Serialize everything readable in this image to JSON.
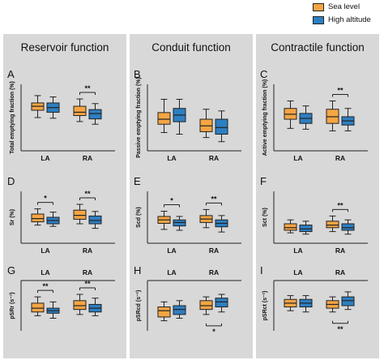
{
  "colors": {
    "sea": "#f5a544",
    "high": "#2d7fc1",
    "panel_bg": "#d8d8d8",
    "stroke": "#222222"
  },
  "legend": [
    {
      "label": "Sea level",
      "color": "#f5a544"
    },
    {
      "label": "High altitude",
      "color": "#2d7fc1"
    }
  ],
  "columns": [
    "Reservoir function",
    "Conduit function",
    "Contractile function"
  ],
  "chart_data": [
    {
      "type": "box",
      "panel": "A",
      "ylabel": "Total emptying fraction (%)",
      "ylim": [
        0,
        100
      ],
      "xlabel_position": "bottom",
      "categories": [
        "LA",
        "RA"
      ],
      "series": [
        {
          "name": "Sea level",
          "boxes": [
            {
              "min": 50,
              "q1": 61,
              "median": 67,
              "q3": 72,
              "max": 83
            },
            {
              "min": 44,
              "q1": 53,
              "median": 58,
              "q3": 67,
              "max": 78
            }
          ]
        },
        {
          "name": "High altitude",
          "boxes": [
            {
              "min": 49,
              "q1": 58,
              "median": 65,
              "q3": 72,
              "max": 81
            },
            {
              "min": 40,
              "q1": 48,
              "median": 56,
              "q3": 62,
              "max": 71
            }
          ]
        }
      ],
      "significance": [
        {
          "category": "RA",
          "label": "**",
          "position": "above"
        }
      ]
    },
    {
      "type": "box",
      "panel": "B",
      "ylabel": "Passive emptying fraction (%)",
      "ylim": [
        0,
        80
      ],
      "xlabel_position": "bottom",
      "categories": [
        "LA",
        "RA"
      ],
      "series": [
        {
          "name": "Sea level",
          "boxes": [
            {
              "min": 22,
              "q1": 32,
              "median": 38,
              "q3": 46,
              "max": 62
            },
            {
              "min": 16,
              "q1": 23,
              "median": 30,
              "q3": 38,
              "max": 50
            }
          ]
        },
        {
          "name": "High altitude",
          "boxes": [
            {
              "min": 20,
              "q1": 35,
              "median": 43,
              "q3": 51,
              "max": 62
            },
            {
              "min": 11,
              "q1": 20,
              "median": 28,
              "q3": 38,
              "max": 48
            }
          ]
        }
      ],
      "significance": []
    },
    {
      "type": "box",
      "panel": "C",
      "ylabel": "Active emptying fraction (%)",
      "ylim": [
        0,
        80
      ],
      "xlabel_position": "bottom",
      "categories": [
        "LA",
        "RA"
      ],
      "series": [
        {
          "name": "Sea level",
          "boxes": [
            {
              "min": 27,
              "q1": 38,
              "median": 44,
              "q3": 51,
              "max": 60
            },
            {
              "min": 24,
              "q1": 33,
              "median": 41,
              "q3": 50,
              "max": 60
            }
          ]
        },
        {
          "name": "High altitude",
          "boxes": [
            {
              "min": 26,
              "q1": 33,
              "median": 39,
              "q3": 45,
              "max": 54
            },
            {
              "min": 24,
              "q1": 31,
              "median": 36,
              "q3": 41,
              "max": 51
            }
          ]
        }
      ],
      "significance": [
        {
          "category": "RA",
          "label": "**",
          "position": "above"
        }
      ]
    },
    {
      "type": "box",
      "panel": "D",
      "ylabel": "Sr (%)",
      "ylim": [
        0,
        80
      ],
      "xlabel_position": "bottom",
      "categories": [
        "LA",
        "RA"
      ],
      "series": [
        {
          "name": "Sea level",
          "boxes": [
            {
              "min": 28,
              "q1": 33,
              "median": 38,
              "q3": 45,
              "max": 53
            },
            {
              "min": 30,
              "q1": 37,
              "median": 43,
              "q3": 51,
              "max": 60
            }
          ]
        },
        {
          "name": "High altitude",
          "boxes": [
            {
              "min": 26,
              "q1": 30,
              "median": 35,
              "q3": 40,
              "max": 48
            },
            {
              "min": 23,
              "q1": 30,
              "median": 35,
              "q3": 42,
              "max": 49
            }
          ]
        }
      ],
      "significance": [
        {
          "category": "LA",
          "label": "*",
          "position": "above"
        },
        {
          "category": "RA",
          "label": "**",
          "position": "above"
        }
      ]
    },
    {
      "type": "box",
      "panel": "E",
      "ylabel": "Scd (%)",
      "ylim": [
        0,
        60
      ],
      "xlabel_position": "bottom",
      "categories": [
        "LA",
        "RA"
      ],
      "series": [
        {
          "name": "Sea level",
          "boxes": [
            {
              "min": 16,
              "q1": 23,
              "median": 27,
              "q3": 31,
              "max": 37
            },
            {
              "min": 18,
              "q1": 24,
              "median": 28,
              "q3": 32,
              "max": 39
            }
          ]
        },
        {
          "name": "High altitude",
          "boxes": [
            {
              "min": 15,
              "q1": 20,
              "median": 24,
              "q3": 27,
              "max": 31
            },
            {
              "min": 13,
              "q1": 19,
              "median": 23,
              "q3": 27,
              "max": 32
            }
          ]
        }
      ],
      "significance": [
        {
          "category": "LA",
          "label": "*",
          "position": "above"
        },
        {
          "category": "RA",
          "label": "**",
          "position": "above"
        }
      ]
    },
    {
      "type": "box",
      "panel": "F",
      "ylabel": "Sct (%)",
      "ylim": [
        0,
        40
      ],
      "xlabel_position": "bottom",
      "categories": [
        "LA",
        "RA"
      ],
      "series": [
        {
          "name": "Sea level",
          "boxes": [
            {
              "min": 8,
              "q1": 10,
              "median": 12,
              "q3": 15,
              "max": 18
            },
            {
              "min": 9,
              "q1": 12,
              "median": 14,
              "q3": 17,
              "max": 21
            }
          ]
        },
        {
          "name": "High altitude",
          "boxes": [
            {
              "min": 7,
              "q1": 9,
              "median": 11,
              "q3": 14,
              "max": 17
            },
            {
              "min": 7,
              "q1": 10,
              "median": 12,
              "q3": 15,
              "max": 18
            }
          ]
        }
      ],
      "significance": [
        {
          "category": "RA",
          "label": "**",
          "position": "above"
        }
      ]
    },
    {
      "type": "box",
      "panel": "G",
      "ylabel": "pSRr (s⁻¹)",
      "ylim": [
        0,
        4
      ],
      "xlabel_position": "top",
      "categories": [
        "LA",
        "RA"
      ],
      "series": [
        {
          "name": "Sea level",
          "boxes": [
            {
              "min": 1.2,
              "q1": 1.5,
              "median": 1.8,
              "q3": 2.2,
              "max": 2.7
            },
            {
              "min": 1.3,
              "q1": 1.7,
              "median": 2.0,
              "q3": 2.4,
              "max": 2.9
            }
          ]
        },
        {
          "name": "High altitude",
          "boxes": [
            {
              "min": 1.0,
              "q1": 1.4,
              "median": 1.6,
              "q3": 1.8,
              "max": 2.3
            },
            {
              "min": 1.2,
              "q1": 1.5,
              "median": 1.8,
              "q3": 2.1,
              "max": 2.6
            }
          ]
        }
      ],
      "significance": [
        {
          "category": "LA",
          "label": "**",
          "position": "above"
        },
        {
          "category": "RA",
          "label": "**",
          "position": "above"
        }
      ]
    },
    {
      "type": "box",
      "panel": "H",
      "ylabel": "pSRcd (s⁻¹)",
      "ylim": [
        -4,
        0
      ],
      "xlabel_position": "top",
      "categories": [
        "LA",
        "RA"
      ],
      "series": [
        {
          "name": "Sea level",
          "boxes": [
            {
              "min": -3.2,
              "q1": -2.9,
              "median": -2.4,
              "q3": -2.1,
              "max": -1.7
            },
            {
              "min": -2.7,
              "q1": -2.3,
              "median": -2.0,
              "q3": -1.6,
              "max": -1.3
            }
          ]
        },
        {
          "name": "High altitude",
          "boxes": [
            {
              "min": -3.0,
              "q1": -2.7,
              "median": -2.3,
              "q3": -2.0,
              "max": -1.6
            },
            {
              "min": -2.5,
              "q1": -2.1,
              "median": -1.7,
              "q3": -1.4,
              "max": -1.1
            }
          ]
        }
      ],
      "significance": [
        {
          "category": "RA",
          "label": "*",
          "position": "below"
        }
      ]
    },
    {
      "type": "box",
      "panel": "I",
      "ylabel": "pSRct (s⁻¹)",
      "ylim": [
        -4,
        0
      ],
      "xlabel_position": "top",
      "categories": [
        "LA",
        "RA"
      ],
      "series": [
        {
          "name": "Sea level",
          "boxes": [
            {
              "min": -2.4,
              "q1": -2.1,
              "median": -1.8,
              "q3": -1.5,
              "max": -1.2
            },
            {
              "min": -2.5,
              "q1": -2.2,
              "median": -1.9,
              "q3": -1.6,
              "max": -1.3
            }
          ]
        },
        {
          "name": "High altitude",
          "boxes": [
            {
              "min": -2.5,
              "q1": -2.1,
              "median": -1.8,
              "q3": -1.5,
              "max": -1.2
            },
            {
              "min": -2.3,
              "q1": -2.0,
              "median": -1.6,
              "q3": -1.3,
              "max": -0.9
            }
          ]
        }
      ],
      "significance": [
        {
          "category": "RA",
          "label": "**",
          "position": "below"
        }
      ]
    }
  ]
}
